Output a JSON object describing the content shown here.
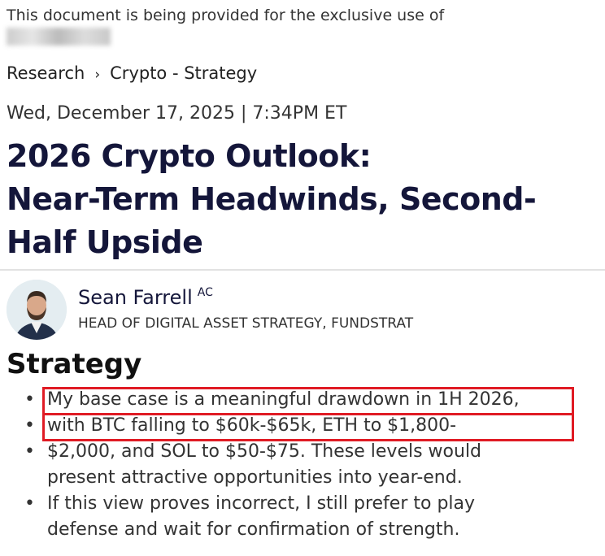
{
  "notice": "This document is being provided for the exclusive use of",
  "breadcrumb": {
    "items": [
      "Research",
      "Crypto - Strategy"
    ],
    "separator": "›"
  },
  "date": "Wed, December 17, 2025 | 7:34PM ET",
  "title": [
    "2026 Crypto Outlook:",
    "Near-Term Headwinds, Second-",
    "Half Upside"
  ],
  "author": {
    "name": "Sean Farrell",
    "badge": "AC",
    "role": "HEAD OF DIGITAL ASSET STRATEGY, FUNDSTRAT"
  },
  "section": {
    "heading": "Strategy",
    "lines": [
      "My base case is a meaningful drawdown in 1H 2026,",
      "with BTC falling to $60k-$65k, ETH to $1,800-",
      "$2,000, and SOL to $50-$75. These levels would",
      "present attractive opportunities into year-end.",
      "If this view proves incorrect, I still prefer to play",
      "defense and wait for confirmation of strength."
    ],
    "bullet": "•"
  },
  "highlight_color": "#e01b24"
}
